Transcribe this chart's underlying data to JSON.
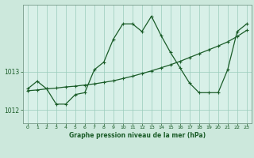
{
  "xlabel": "Graphe pression niveau de la mer (hPa)",
  "bg_color": "#cce8dc",
  "plot_bg_color": "#d8f0e8",
  "line_color": "#1a5c28",
  "grid_color": "#99ccbb",
  "text_color": "#1a5c28",
  "spine_color": "#779988",
  "xlim": [
    -0.5,
    23.5
  ],
  "ylim": [
    1011.65,
    1014.75
  ],
  "yticks": [
    1012,
    1013
  ],
  "xticks": [
    0,
    1,
    2,
    3,
    4,
    5,
    6,
    7,
    8,
    9,
    10,
    11,
    12,
    13,
    14,
    15,
    16,
    17,
    18,
    19,
    20,
    21,
    22,
    23
  ],
  "curve1_x": [
    0,
    1,
    2,
    3,
    4,
    5,
    6,
    7,
    8,
    9,
    10,
    11,
    12,
    13,
    14,
    15,
    16,
    17,
    18,
    19,
    20,
    21,
    22,
    23
  ],
  "curve1_y": [
    1012.55,
    1012.75,
    1012.55,
    1012.15,
    1012.15,
    1012.4,
    1012.45,
    1013.05,
    1013.25,
    1013.85,
    1014.25,
    1014.25,
    1014.05,
    1014.45,
    1013.95,
    1013.5,
    1013.1,
    1012.7,
    1012.45,
    1012.45,
    1012.45,
    1013.05,
    1014.05,
    1014.25
  ],
  "curve2_x": [
    0,
    1,
    2,
    3,
    4,
    5,
    6,
    7,
    8,
    9,
    10,
    11,
    12,
    13,
    14,
    15,
    16,
    17,
    18,
    19,
    20,
    21,
    22,
    23
  ],
  "curve2_y": [
    1012.5,
    1012.52,
    1012.55,
    1012.57,
    1012.6,
    1012.62,
    1012.65,
    1012.68,
    1012.72,
    1012.76,
    1012.82,
    1012.88,
    1012.95,
    1013.02,
    1013.1,
    1013.18,
    1013.27,
    1013.37,
    1013.47,
    1013.57,
    1013.67,
    1013.78,
    1013.92,
    1014.08
  ]
}
